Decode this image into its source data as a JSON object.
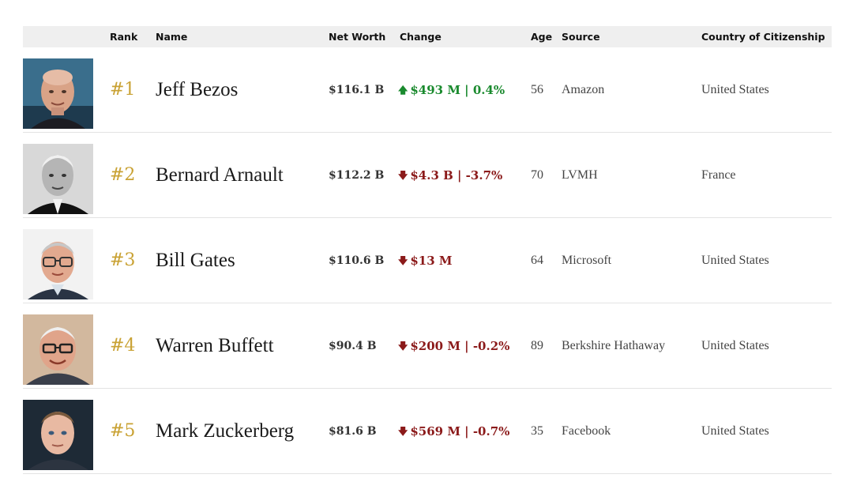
{
  "header": {
    "rank": "Rank",
    "name": "Name",
    "net_worth": "Net Worth",
    "change": "Change",
    "age": "Age",
    "source": "Source",
    "country": "Country of Citizenship"
  },
  "rows": [
    {
      "rank": "#1",
      "name": "Jeff Bezos",
      "net_worth": "$116.1 B",
      "direction": "up",
      "arrow": "🡅",
      "change": "$493 M | 0.4%",
      "age": "56",
      "source": "Amazon",
      "country": "United States",
      "photo_icon": "portrait-jeff-bezos"
    },
    {
      "rank": "#2",
      "name": "Bernard Arnault",
      "net_worth": "$112.2 B",
      "direction": "down",
      "arrow": "🡇",
      "change": "$4.3 B | -3.7%",
      "age": "70",
      "source": "LVMH",
      "country": "France",
      "photo_icon": "portrait-bernard-arnault"
    },
    {
      "rank": "#3",
      "name": "Bill Gates",
      "net_worth": "$110.6 B",
      "direction": "down",
      "arrow": "🡇",
      "change": "$13 M",
      "age": "64",
      "source": "Microsoft",
      "country": "United States",
      "photo_icon": "portrait-bill-gates"
    },
    {
      "rank": "#4",
      "name": "Warren Buffett",
      "net_worth": "$90.4 B",
      "direction": "down",
      "arrow": "🡇",
      "change": "$200 M | -0.2%",
      "age": "89",
      "source": "Berkshire Hathaway",
      "country": "United States",
      "photo_icon": "portrait-warren-buffett"
    },
    {
      "rank": "#5",
      "name": "Mark Zuckerberg",
      "net_worth": "$81.6 B",
      "direction": "down",
      "arrow": "🡇",
      "change": "$569 M | -0.7%",
      "age": "35",
      "source": "Facebook",
      "country": "United States",
      "photo_icon": "portrait-mark-zuckerberg"
    }
  ],
  "colors": {
    "rank_gold": "#c9a234",
    "change_up": "#1a8a2e",
    "change_down": "#8b1a1a",
    "header_bg": "#efefef"
  }
}
